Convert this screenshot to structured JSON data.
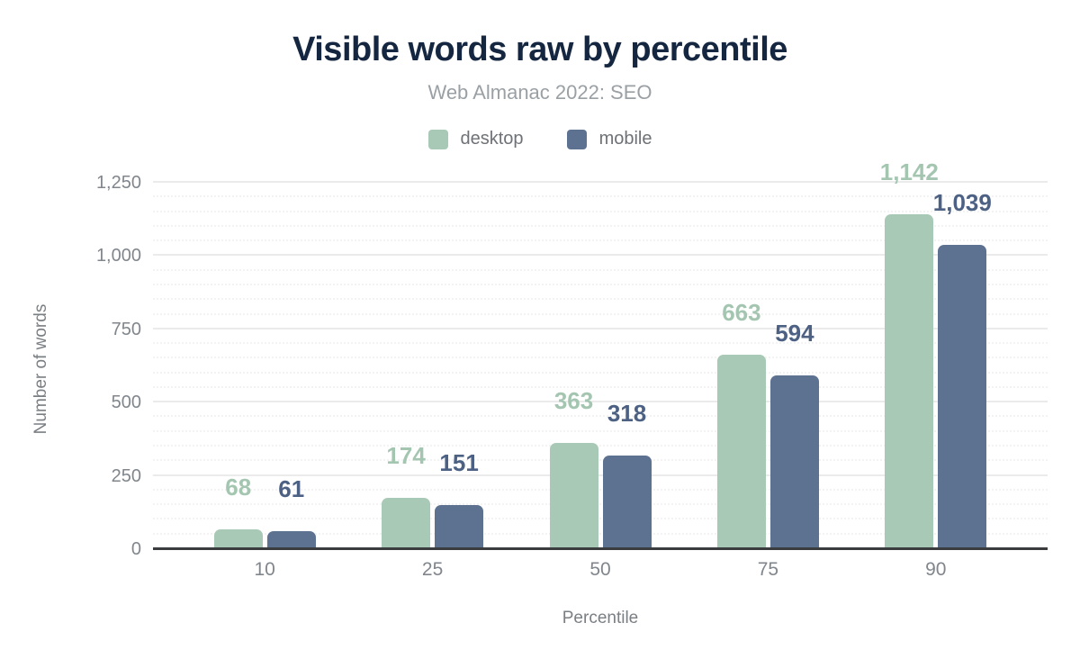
{
  "chart_data": {
    "type": "bar",
    "title": "Visible words raw by percentile",
    "subtitle": "Web Almanac 2022: SEO",
    "xlabel": "Percentile",
    "ylabel": "Number of words",
    "categories": [
      "10",
      "25",
      "50",
      "75",
      "90"
    ],
    "series": [
      {
        "name": "desktop",
        "values": [
          68,
          174,
          363,
          663,
          1142
        ],
        "labels": [
          "68",
          "174",
          "363",
          "663",
          "1,142"
        ],
        "color": "#a8c9b5",
        "label_color": "#a4c6b1"
      },
      {
        "name": "mobile",
        "values": [
          61,
          151,
          318,
          594,
          1039
        ],
        "labels": [
          "61",
          "151",
          "318",
          "594",
          "1,039"
        ],
        "color": "#5d7190",
        "label_color": "#4c6183"
      }
    ],
    "ylim": [
      0,
      1250
    ],
    "y_tick_values": [
      0,
      250,
      500,
      750,
      1000,
      1250
    ],
    "y_tick_labels": [
      "0",
      "250",
      "500",
      "750",
      "1,000",
      "1,250"
    ],
    "grid": {
      "minor_step": 50,
      "major_step": 250,
      "minor_visible": true
    },
    "legend_position": "top"
  },
  "colors": {
    "title": "#152740",
    "subtitle": "#9aa0a4",
    "legend_text": "#6e7276",
    "tick_text": "#80868c",
    "axis_title_text": "#7a7f84",
    "axis_line": "#3b3c3e",
    "grid_major": "#ebebeb",
    "grid_minor": "#f3f3f3",
    "background": "#ffffff"
  }
}
